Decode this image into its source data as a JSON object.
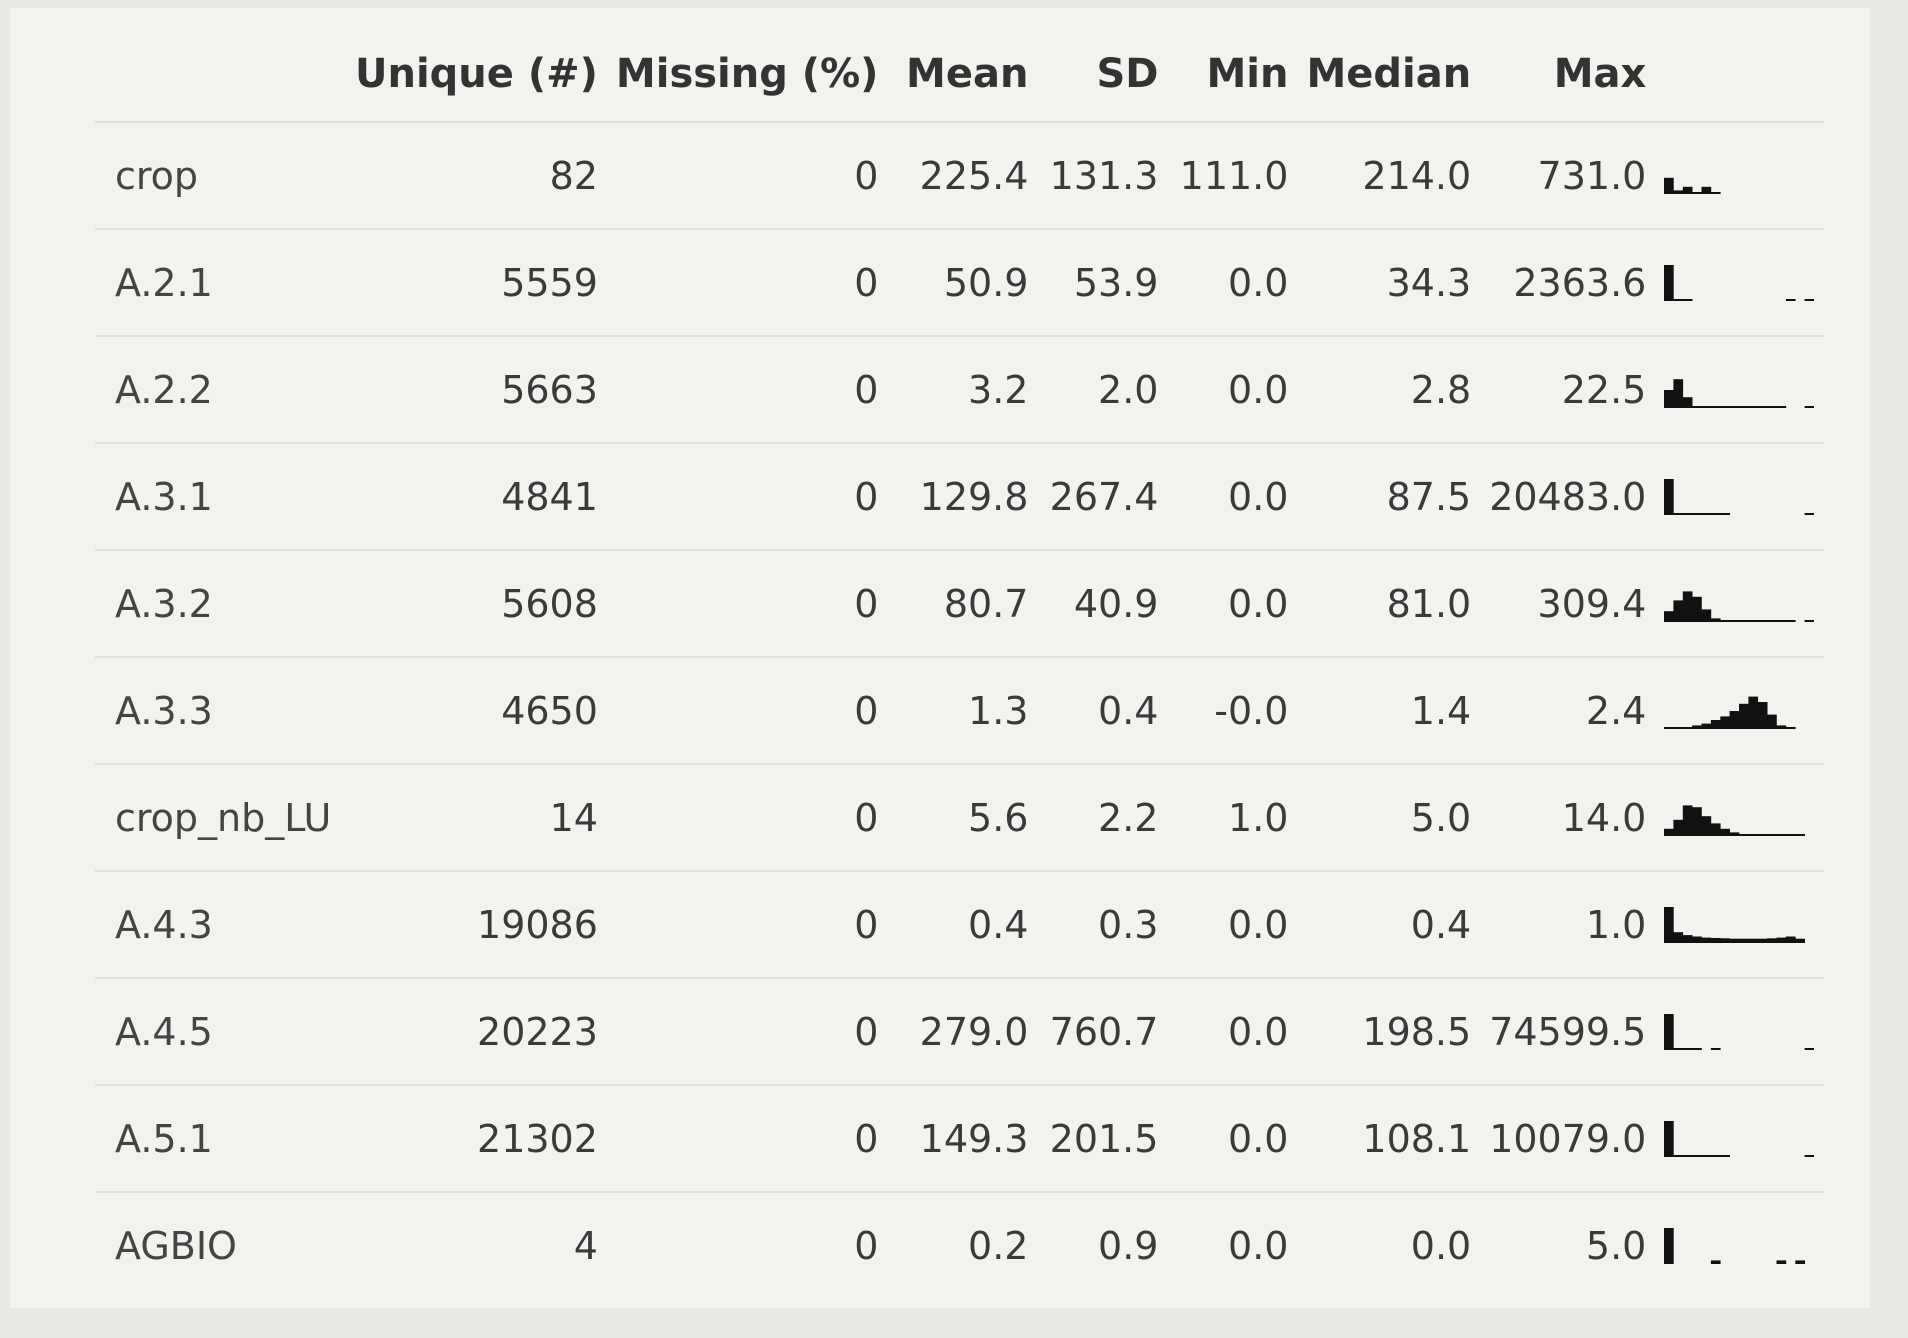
{
  "columns": [
    "",
    "Unique (#)",
    "Missing (%)",
    "Mean",
    "SD",
    "Min",
    "Median",
    "Max",
    ""
  ],
  "rows": [
    {
      "name": "crop",
      "unique": "82",
      "missing": "0",
      "mean": "225.4",
      "sd": "131.3",
      "min": "111.0",
      "median": "214.0",
      "max": "731.0",
      "hist": [
        0.45,
        0.1,
        0.2,
        0.02,
        0.2,
        0.02,
        0,
        0,
        0,
        0,
        0,
        0,
        0,
        0,
        0,
        0
      ]
    },
    {
      "name": "A.2.1",
      "unique": "5559",
      "missing": "0",
      "mean": "50.9",
      "sd": "53.9",
      "min": "0.0",
      "median": "34.3",
      "max": "2363.6",
      "hist": [
        1,
        0.02,
        0.02,
        0,
        0,
        0,
        0,
        0,
        0,
        0,
        0,
        0,
        0,
        0.02,
        0,
        0.02
      ]
    },
    {
      "name": "A.2.2",
      "unique": "5663",
      "missing": "0",
      "mean": "3.2",
      "sd": "2.0",
      "min": "0.0",
      "median": "2.8",
      "max": "22.5",
      "hist": [
        0.5,
        0.8,
        0.3,
        0.05,
        0.02,
        0.02,
        0.02,
        0.02,
        0.02,
        0.02,
        0.02,
        0.02,
        0.02,
        0,
        0,
        0.02
      ]
    },
    {
      "name": "A.3.1",
      "unique": "4841",
      "missing": "0",
      "mean": "129.8",
      "sd": "267.4",
      "min": "0.0",
      "median": "87.5",
      "max": "20483.0",
      "hist": [
        1,
        0.02,
        0.02,
        0.02,
        0.02,
        0.02,
        0.02,
        0,
        0,
        0,
        0,
        0,
        0,
        0,
        0,
        0.02
      ]
    },
    {
      "name": "A.3.2",
      "unique": "5608",
      "missing": "0",
      "mean": "80.7",
      "sd": "40.9",
      "min": "0.0",
      "median": "81.0",
      "max": "309.4",
      "hist": [
        0.3,
        0.6,
        0.85,
        0.7,
        0.35,
        0.1,
        0.03,
        0.03,
        0.02,
        0.02,
        0.02,
        0.02,
        0.02,
        0.02,
        0,
        0.02
      ]
    },
    {
      "name": "A.3.3",
      "unique": "4650",
      "missing": "0",
      "mean": "1.3",
      "sd": "0.4",
      "min": "-0.0",
      "median": "1.4",
      "max": "2.4",
      "hist": [
        0.02,
        0.02,
        0.05,
        0.1,
        0.15,
        0.25,
        0.35,
        0.5,
        0.7,
        0.9,
        0.75,
        0.4,
        0.1,
        0.02,
        0,
        0
      ]
    },
    {
      "name": "crop_nb_LU",
      "unique": "14",
      "missing": "0",
      "mean": "5.6",
      "sd": "2.2",
      "min": "1.0",
      "median": "5.0",
      "max": "14.0",
      "hist": [
        0.2,
        0.45,
        0.85,
        0.8,
        0.55,
        0.35,
        0.2,
        0.1,
        0.05,
        0.03,
        0.02,
        0.02,
        0.02,
        0.02,
        0.02,
        0
      ]
    },
    {
      "name": "A.4.3",
      "unique": "19086",
      "missing": "0",
      "mean": "0.4",
      "sd": "0.3",
      "min": "0.0",
      "median": "0.4",
      "max": "1.0",
      "hist": [
        1,
        0.3,
        0.22,
        0.18,
        0.15,
        0.14,
        0.13,
        0.12,
        0.12,
        0.12,
        0.12,
        0.13,
        0.15,
        0.18,
        0.12,
        0
      ]
    },
    {
      "name": "A.4.5",
      "unique": "20223",
      "missing": "0",
      "mean": "279.0",
      "sd": "760.7",
      "min": "0.0",
      "median": "198.5",
      "max": "74599.5",
      "hist": [
        1,
        0.02,
        0.02,
        0.02,
        0,
        0.02,
        0,
        0,
        0,
        0,
        0,
        0,
        0,
        0,
        0,
        0.02
      ]
    },
    {
      "name": "A.5.1",
      "unique": "21302",
      "missing": "0",
      "mean": "149.3",
      "sd": "201.5",
      "min": "0.0",
      "median": "108.1",
      "max": "10079.0",
      "hist": [
        1,
        0.02,
        0.02,
        0.02,
        0.02,
        0.02,
        0.02,
        0,
        0,
        0,
        0,
        0,
        0,
        0,
        0,
        0.02
      ]
    },
    {
      "name": "AGBIO",
      "unique": "4",
      "missing": "0",
      "mean": "0.2",
      "sd": "0.9",
      "min": "0.0",
      "median": "0.0",
      "max": "5.0",
      "hist": [
        1,
        0,
        0,
        0,
        0,
        0.1,
        0,
        0,
        0,
        0,
        0,
        0,
        0.1,
        0,
        0.1,
        0
      ]
    }
  ],
  "colors": {
    "bar": "#111111",
    "axis": "#111111"
  }
}
